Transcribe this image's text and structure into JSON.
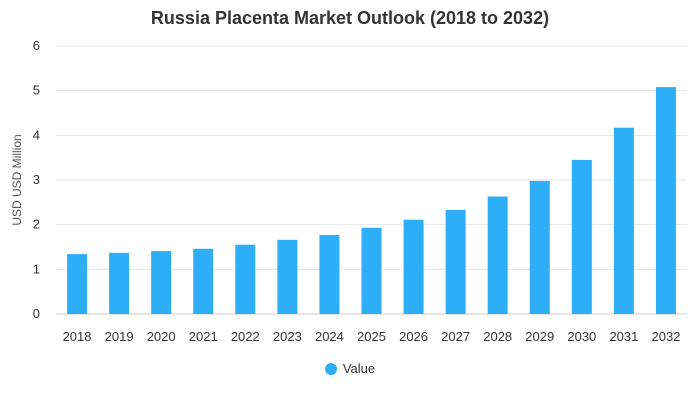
{
  "chart_data": {
    "type": "bar",
    "title": "Russia Placenta Market Outlook (2018 to 2032)",
    "xlabel": "",
    "ylabel": "USD USD Million",
    "ylim": [
      0,
      6
    ],
    "yticks": [
      0,
      1,
      2,
      3,
      4,
      5,
      6
    ],
    "categories": [
      "2018",
      "2019",
      "2020",
      "2021",
      "2022",
      "2023",
      "2024",
      "2025",
      "2026",
      "2027",
      "2028",
      "2029",
      "2030",
      "2031",
      "2032"
    ],
    "series": [
      {
        "name": "Value",
        "color": "#2eaef7",
        "values": [
          1.34,
          1.37,
          1.41,
          1.46,
          1.55,
          1.66,
          1.77,
          1.93,
          2.11,
          2.33,
          2.63,
          2.98,
          3.45,
          4.17,
          5.08
        ]
      }
    ],
    "grid": true,
    "legend_position": "bottom"
  }
}
